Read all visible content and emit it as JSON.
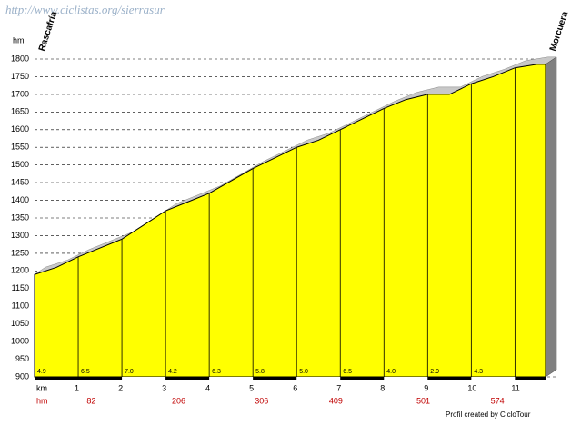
{
  "header": {
    "url": "http://www.ciclistas.org/sierrasur",
    "credit": "Profil created by CicloTour"
  },
  "chart_data": {
    "type": "area",
    "y_label": "hm",
    "x_label": "km",
    "start_label": "Rascafría",
    "end_label": "Morcuera",
    "color": "#ffff00",
    "grid": true,
    "x": [
      0,
      0.5,
      1,
      1.5,
      2,
      2.5,
      3,
      3.5,
      4,
      4.5,
      5,
      5.5,
      6,
      6.5,
      7,
      7.5,
      8,
      8.5,
      9,
      9.5,
      10,
      10.5,
      11,
      11.5,
      11.7
    ],
    "values": [
      1190,
      1210,
      1240,
      1265,
      1290,
      1330,
      1370,
      1395,
      1420,
      1455,
      1490,
      1520,
      1550,
      1570,
      1600,
      1630,
      1660,
      1685,
      1700,
      1700,
      1730,
      1750,
      1775,
      1785,
      1785
    ],
    "xlim": [
      0,
      11.7
    ],
    "xticks": [
      1,
      2,
      3,
      4,
      5,
      6,
      7,
      8,
      9,
      10,
      11
    ],
    "ylim": [
      900,
      1800
    ],
    "yticks": [
      900,
      950,
      1000,
      1050,
      1100,
      1150,
      1200,
      1250,
      1300,
      1350,
      1400,
      1450,
      1500,
      1550,
      1600,
      1650,
      1700,
      1750,
      1800
    ],
    "gradients": {
      "values": [
        4.9,
        6.5,
        7.0,
        4.2,
        6.3,
        5.8,
        5.0,
        6.5,
        4.0,
        2.9,
        4.3
      ],
      "value_labels": [
        "4.9",
        "6.5",
        "7.0",
        "4.2",
        "6.3",
        "5.8",
        "5.0",
        "6.5",
        "4.0",
        "2.9",
        "4.3"
      ]
    },
    "hm_label": "hm",
    "climb_hm": [
      82,
      206,
      306,
      409,
      501,
      574
    ]
  }
}
